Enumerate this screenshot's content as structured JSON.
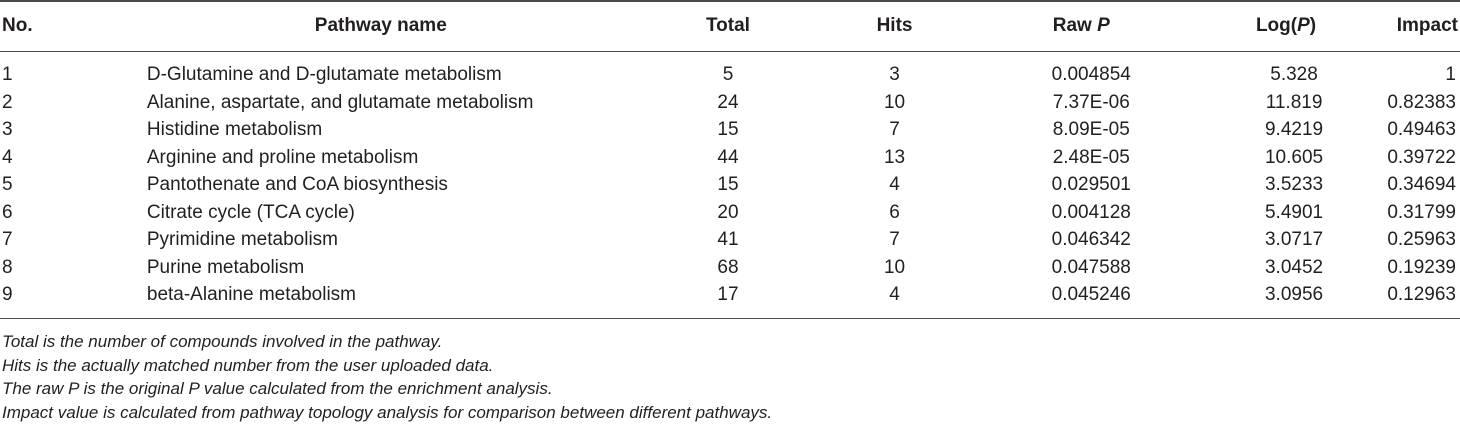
{
  "table": {
    "headers": {
      "no": "No.",
      "name": "Pathway name",
      "total": "Total",
      "hits": "Hits",
      "raw_prefix": "Raw ",
      "raw_italic": "P",
      "log_prefix": "Log(",
      "log_italic": "P",
      "log_suffix": ")",
      "impact": "Impact"
    },
    "rows": [
      {
        "no": "1",
        "name": "D-Glutamine and D-glutamate metabolism",
        "total": "5",
        "hits": "3",
        "raw": "0.004854",
        "log": "5.328",
        "impact": "1"
      },
      {
        "no": "2",
        "name": "Alanine, aspartate, and glutamate metabolism",
        "total": "24",
        "hits": "10",
        "raw": "7.37E-06",
        "log": "11.819",
        "impact": "0.82383"
      },
      {
        "no": "3",
        "name": "Histidine metabolism",
        "total": "15",
        "hits": "7",
        "raw": "8.09E-05",
        "log": "9.4219",
        "impact": "0.49463"
      },
      {
        "no": "4",
        "name": "Arginine and proline metabolism",
        "total": "44",
        "hits": "13",
        "raw": "2.48E-05",
        "log": "10.605",
        "impact": "0.39722"
      },
      {
        "no": "5",
        "name": "Pantothenate and CoA biosynthesis",
        "total": "15",
        "hits": "4",
        "raw": "0.029501",
        "log": "3.5233",
        "impact": "0.34694"
      },
      {
        "no": "6",
        "name": "Citrate cycle (TCA cycle)",
        "total": "20",
        "hits": "6",
        "raw": "0.004128",
        "log": "5.4901",
        "impact": "0.31799"
      },
      {
        "no": "7",
        "name": "Pyrimidine metabolism",
        "total": "41",
        "hits": "7",
        "raw": "0.046342",
        "log": "3.0717",
        "impact": "0.25963"
      },
      {
        "no": "8",
        "name": "Purine metabolism",
        "total": "68",
        "hits": "10",
        "raw": "0.047588",
        "log": "3.0452",
        "impact": "0.19239"
      },
      {
        "no": "9",
        "name": "beta-Alanine metabolism",
        "total": "17",
        "hits": "4",
        "raw": "0.045246",
        "log": "3.0956",
        "impact": "0.12963"
      }
    ]
  },
  "footnotes": [
    "Total is the number of compounds involved in the pathway.",
    "Hits is the actually matched number from the user uploaded data.",
    "The raw P is the original P value calculated from the enrichment analysis.",
    "Impact value is calculated from pathway topology analysis for comparison between different pathways."
  ],
  "colors": {
    "text": "#231f20",
    "rule": "#4a4a4a",
    "background": "#ffffff"
  }
}
